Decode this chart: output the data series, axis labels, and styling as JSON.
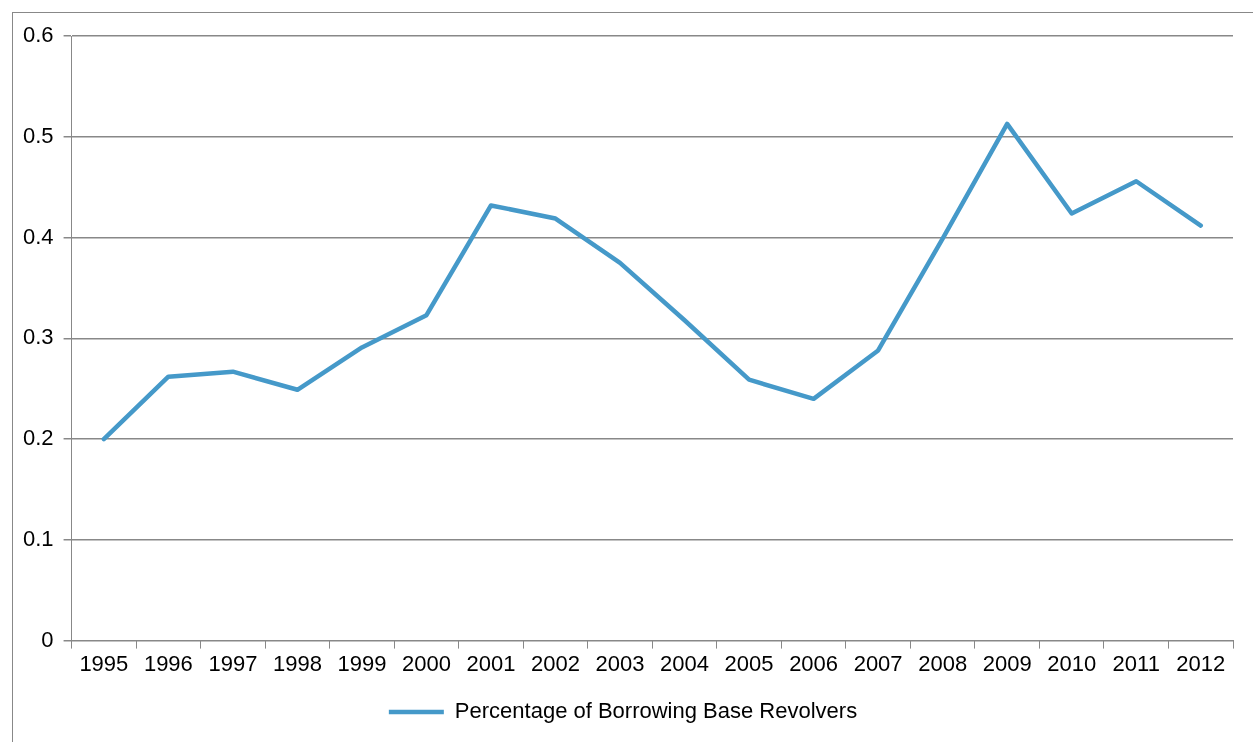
{
  "chart_data": {
    "type": "line",
    "categories": [
      "1995",
      "1996",
      "1997",
      "1998",
      "1999",
      "2000",
      "2001",
      "2002",
      "2003",
      "2004",
      "2005",
      "2006",
      "2007",
      "2008",
      "2009",
      "2010",
      "2011",
      "2012"
    ],
    "series": [
      {
        "name": "Percentage of Borrowing Base Revolvers",
        "color": "#4599c9",
        "values": [
          0.2,
          0.262,
          0.267,
          0.249,
          0.291,
          0.323,
          0.432,
          0.419,
          0.375,
          0.318,
          0.259,
          0.24,
          0.288,
          0.399,
          0.513,
          0.424,
          0.456,
          0.412
        ]
      }
    ],
    "ylim": [
      0,
      0.6
    ],
    "yticks": [
      0,
      0.1,
      0.2,
      0.3,
      0.4,
      0.5,
      0.6
    ],
    "grid": "y",
    "legend": "bottom",
    "marker": "none",
    "line_style": "solid"
  }
}
